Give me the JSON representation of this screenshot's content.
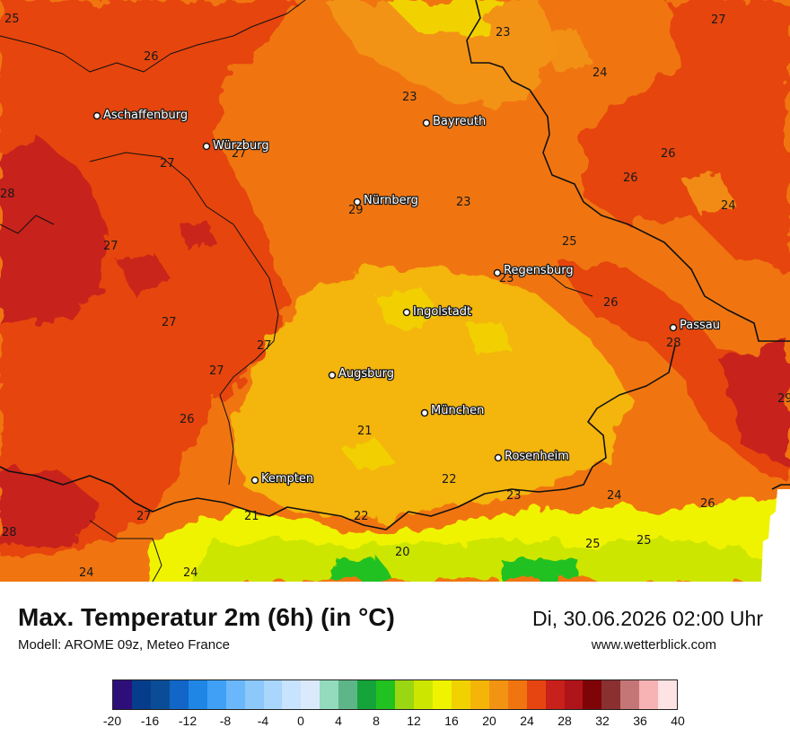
{
  "map": {
    "cities": [
      {
        "name": "Aschaffenburg",
        "id": "aschaffenburg"
      },
      {
        "name": "Würzburg",
        "id": "wuerzburg"
      },
      {
        "name": "Bayreuth",
        "id": "bayreuth"
      },
      {
        "name": "Nürnberg",
        "id": "nuernberg"
      },
      {
        "name": "Regensburg",
        "id": "regensburg"
      },
      {
        "name": "Ingolstadt",
        "id": "ingolstadt"
      },
      {
        "name": "Passau",
        "id": "passau"
      },
      {
        "name": "Augsburg",
        "id": "augsburg"
      },
      {
        "name": "München",
        "id": "muenchen"
      },
      {
        "name": "Rosenheim",
        "id": "rosenheim"
      },
      {
        "name": "Kempten",
        "id": "kempten"
      }
    ],
    "temperature_labels": [
      "25",
      "26",
      "23",
      "27",
      "24",
      "23",
      "27",
      "26",
      "26",
      "28",
      "29",
      "23",
      "24",
      "27",
      "25",
      "23",
      "27",
      "26",
      "27",
      "28",
      "27",
      "27",
      "29",
      "26",
      "21",
      "22",
      "23",
      "24",
      "26",
      "28",
      "27",
      "21",
      "22",
      "20",
      "25",
      "25",
      "24",
      "24"
    ]
  },
  "footer": {
    "title": "Max. Temperatur 2m (6h) (in °C)",
    "model": "Modell: AROME 09z, Meteo France",
    "datetime": "Di, 30.06.2026 02:00 Uhr",
    "website": "www.wetterblick.com"
  },
  "legend": {
    "ticks": [
      "-20",
      "-16",
      "-12",
      "-8",
      "-4",
      "0",
      "4",
      "8",
      "12",
      "16",
      "20",
      "24",
      "28",
      "32",
      "36",
      "40"
    ],
    "colors": [
      "#2e0f7a",
      "#063c8c",
      "#0a4d96",
      "#1166c8",
      "#1f86e6",
      "#3fa0f5",
      "#6ab8fb",
      "#8dc8fb",
      "#a9d6fc",
      "#c7e3fd",
      "#daeafc",
      "#93dbbc",
      "#5eb688",
      "#15a43a",
      "#21c120",
      "#9ad612",
      "#cde600",
      "#f0f300",
      "#f1d200",
      "#f4b508",
      "#f39314",
      "#f07510",
      "#e64411",
      "#c8201a",
      "#ae1419",
      "#7e0408",
      "#8b3030",
      "#c47676",
      "#f7b3b3",
      "#fde3e3"
    ]
  }
}
